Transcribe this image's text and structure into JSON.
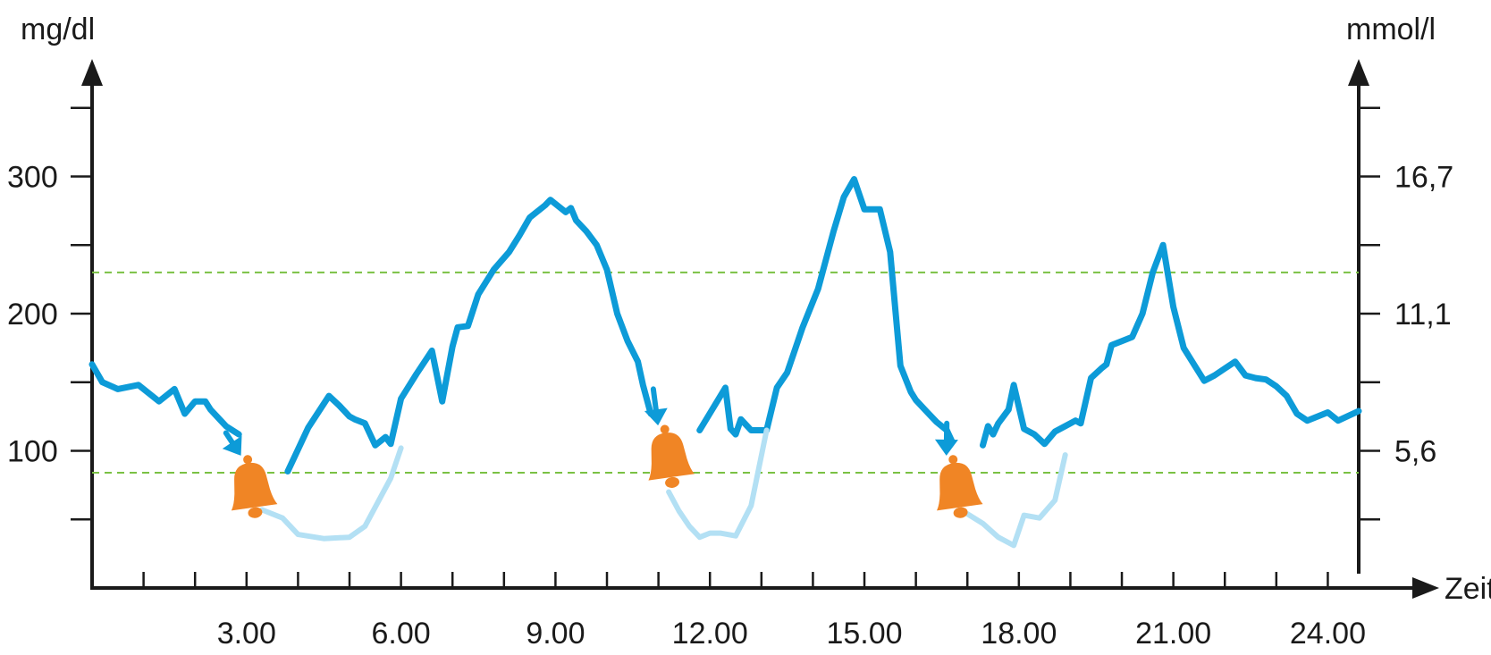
{
  "chart_data": {
    "type": "line",
    "title": "",
    "xlabel": "Zeit",
    "ylabel": "mg/dl",
    "ylabel_right": "mmol/l",
    "xlim": [
      0,
      24.6
    ],
    "ylim": [
      0,
      370
    ],
    "x_tick_values": [
      3,
      6,
      9,
      12,
      15,
      18,
      21,
      24
    ],
    "x_tick_labels": [
      "3.00",
      "6.00",
      "9.00",
      "12.00",
      "15.00",
      "18.00",
      "21.00",
      "24.00"
    ],
    "y_tick_values": [
      100,
      200,
      300
    ],
    "y_tick_labels": [
      "100",
      "200",
      "300"
    ],
    "y_right_tick_values": [
      100,
      200,
      300
    ],
    "y_right_tick_labels": [
      "5,6",
      "11,1",
      "16,7"
    ],
    "y_minor_ticks": [
      50,
      150,
      250,
      350
    ],
    "reference_lines": [
      230,
      84
    ],
    "grid": false,
    "colors": {
      "main": "#0d9bd8",
      "projection": "#b3e0f4",
      "reference": "#7ac143",
      "alarm": "#f08525",
      "axis": "#1a1a1a"
    },
    "alarm_icon": "bell-icon",
    "alarm_points": [
      {
        "x": 3.1,
        "y": 73,
        "arrow_from": [
          2.6,
          113
        ]
      },
      {
        "x": 11.2,
        "y": 95,
        "arrow_from": [
          10.9,
          145
        ]
      },
      {
        "x": 16.8,
        "y": 73,
        "arrow_from": [
          16.6,
          120
        ]
      }
    ],
    "series": [
      {
        "role": "main",
        "x": [
          0,
          0.2,
          0.5,
          0.9,
          1.0,
          1.3,
          1.6,
          1.8,
          2.0,
          2.2,
          2.3,
          2.5,
          2.6,
          2.85
        ],
        "y": [
          163,
          150,
          145,
          148,
          145,
          136,
          145,
          127,
          136,
          136,
          130,
          122,
          118,
          112
        ]
      },
      {
        "role": "main",
        "x": [
          3.8,
          4.2,
          4.6,
          4.8,
          5.0,
          5.1,
          5.3,
          5.5,
          5.7,
          5.8,
          6.0,
          6.3,
          6.6,
          6.8,
          7.0,
          7.1,
          7.3,
          7.5,
          7.8,
          8.1,
          8.3,
          8.5,
          8.8,
          8.9,
          9.0,
          9.2,
          9.3,
          9.4,
          9.6,
          9.8,
          10.0,
          10.2,
          10.4,
          10.6,
          10.7,
          10.85
        ],
        "y": [
          85,
          117,
          140,
          133,
          125,
          123,
          120,
          104,
          110,
          105,
          138,
          156,
          173,
          136,
          176,
          190,
          191,
          214,
          232,
          245,
          257,
          270,
          279,
          283,
          280,
          274,
          277,
          268,
          260,
          250,
          232,
          200,
          180,
          165,
          148,
          127
        ]
      },
      {
        "role": "main",
        "x": [
          11.8,
          12.3,
          12.4,
          12.5,
          12.6,
          12.8,
          13.1,
          13.3,
          13.5,
          13.8,
          14.1,
          14.4,
          14.6,
          14.8,
          15.0,
          15.1,
          15.3,
          15.5,
          15.7,
          15.9,
          16.0,
          16.2,
          16.4,
          16.6,
          16.7
        ],
        "y": [
          115,
          146,
          116,
          112,
          123,
          115,
          115,
          146,
          157,
          190,
          218,
          260,
          285,
          298,
          276,
          276,
          276,
          245,
          162,
          143,
          137,
          129,
          121,
          115,
          107
        ]
      },
      {
        "role": "main",
        "x": [
          17.3,
          17.4,
          17.5,
          17.6,
          17.8,
          17.9,
          18.1,
          18.3,
          18.5,
          18.7,
          18.9,
          19.1,
          19.2,
          19.4,
          19.6,
          19.7,
          19.8,
          20.0,
          20.2,
          20.4,
          20.6,
          20.8,
          21.0,
          21.2,
          21.4,
          21.6,
          21.8,
          22.0,
          22.2,
          22.4,
          22.6,
          22.8,
          23.0,
          23.2,
          23.4,
          23.6,
          23.8,
          24.0,
          24.2,
          24.6
        ],
        "y": [
          104,
          118,
          112,
          120,
          130,
          148,
          116,
          112,
          105,
          114,
          118,
          122,
          120,
          153,
          160,
          163,
          177,
          180,
          183,
          200,
          230,
          250,
          205,
          175,
          163,
          151,
          155,
          160,
          165,
          155,
          153,
          152,
          147,
          140,
          127,
          122,
          125,
          128,
          122,
          129
        ]
      },
      {
        "role": "projection",
        "x": [
          3.3,
          3.7,
          4.0,
          4.5,
          5.0,
          5.3,
          5.6,
          5.8,
          6.0
        ],
        "y": [
          57,
          51,
          39,
          36,
          37,
          45,
          66,
          80,
          102
        ]
      },
      {
        "role": "projection",
        "x": [
          11.2,
          11.4,
          11.6,
          11.8,
          12.0,
          12.2,
          12.5,
          12.8,
          13.1
        ],
        "y": [
          70,
          56,
          45,
          37,
          40,
          40,
          38,
          60,
          115
        ]
      },
      {
        "role": "projection",
        "x": [
          17.0,
          17.3,
          17.6,
          17.9,
          18.1,
          18.4,
          18.7,
          18.9
        ],
        "y": [
          54,
          47,
          37,
          31,
          53,
          51,
          64,
          97
        ]
      }
    ]
  }
}
